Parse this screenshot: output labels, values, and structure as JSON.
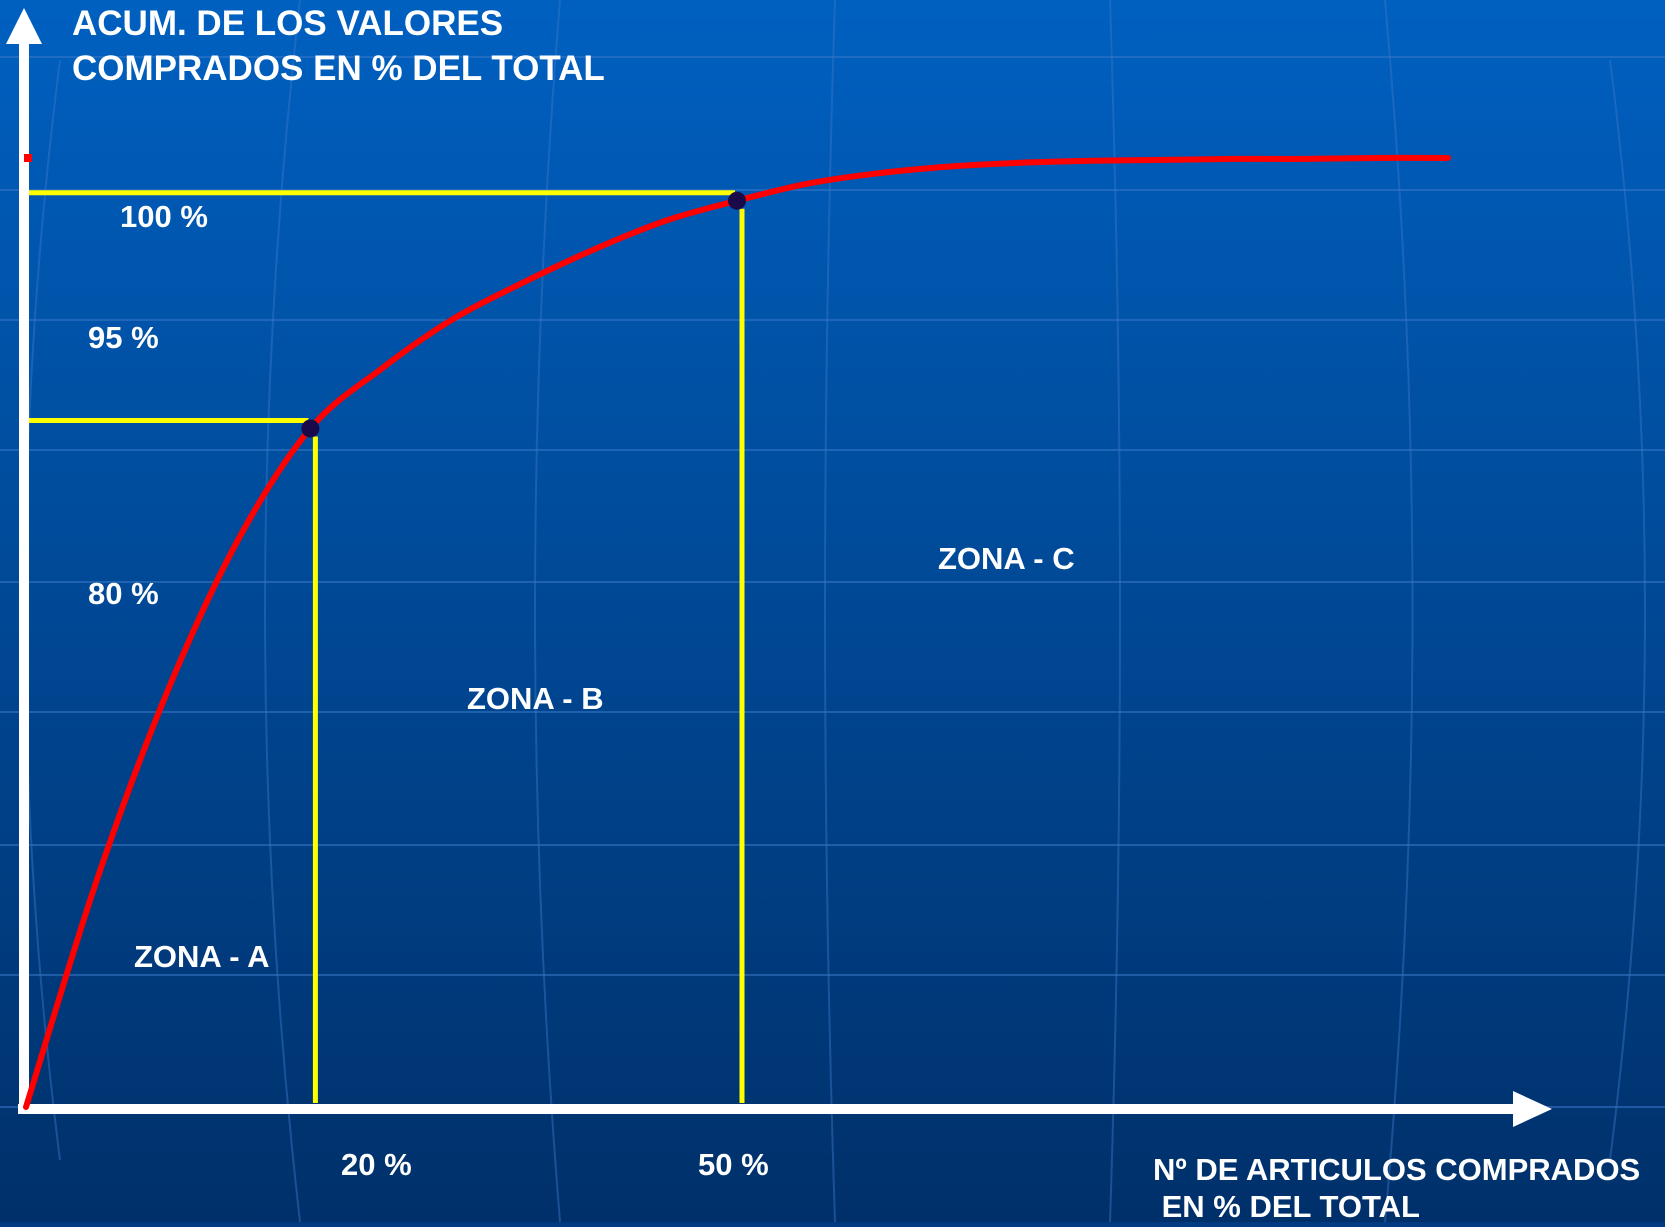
{
  "chart_data": {
    "type": "line",
    "ylabel_lines": [
      "ACUM. DE LOS VALORES",
      "COMPRADOS EN % DEL TOTAL"
    ],
    "xlabel_lines": [
      "Nº DE ARTICULOS COMPRADOS",
      " EN % DEL TOTAL"
    ],
    "y_tick_labels": [
      "100 %",
      "95 %",
      "80 %"
    ],
    "x_tick_labels": [
      "20 %",
      "50 %"
    ],
    "zones": [
      "ZONA - A",
      "ZONA - B",
      "ZONA - C"
    ],
    "xlim": [
      0,
      100
    ],
    "ylim": [
      0,
      100
    ],
    "curve": {
      "x": [
        0,
        5,
        10,
        15,
        20,
        25,
        30,
        35,
        40,
        45,
        50,
        55,
        60,
        65,
        70,
        75,
        80,
        85,
        90,
        95,
        100
      ],
      "y": [
        0,
        24,
        44,
        60,
        71.5,
        77.8,
        83,
        86.9,
        90.4,
        93.4,
        95.5,
        97.3,
        98.4,
        99.1,
        99.5,
        99.7,
        99.8,
        99.9,
        99.9,
        100,
        100
      ]
    },
    "markers": [
      {
        "x": 20,
        "y": 71.5
      },
      {
        "x": 50,
        "y": 95.5
      }
    ],
    "colors": {
      "curve": "#ff0000",
      "guides": "#ffff00",
      "axes": "#ffffff",
      "marker": "#1a0a4a",
      "background_top": "#0060c0",
      "background_bottom": "#00306a"
    }
  }
}
